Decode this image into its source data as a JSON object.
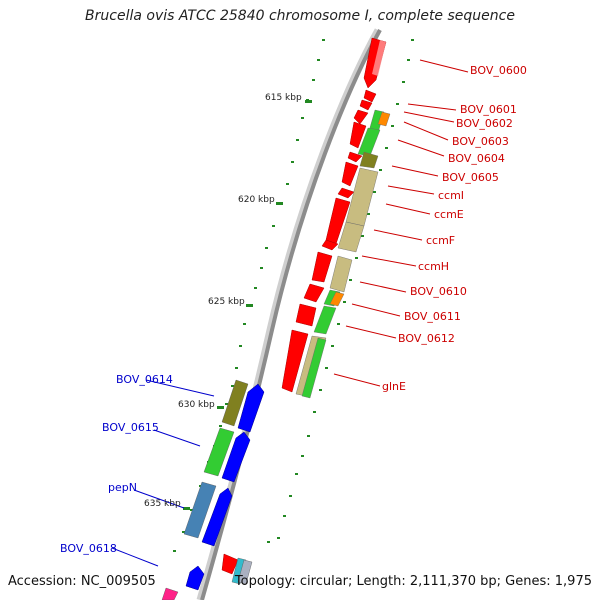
{
  "title": "Brucella ovis ATCC 25840 chromosome I, complete sequence",
  "accession_text": "Accession: NC_009505",
  "summary_text": "Topology: circular; Length: 2,111,370 bp; Genes: 1,975",
  "colors": {
    "backbone": "#8c8c8c",
    "forward_gene": "#ff0000",
    "reverse_gene": "#0000ff",
    "cds_green": "#33cc33",
    "cds_olive": "#808020",
    "cds_khaki": "#c8bc80",
    "cds_orange": "#ff8800",
    "cds_steel": "#4682b4",
    "tick_green": "#228822",
    "label_red": "#cc0000",
    "label_blue": "#0000cc"
  },
  "scale_labels": [
    "615 kbp",
    "620 kbp",
    "625 kbp",
    "630 kbp",
    "635 kbp"
  ],
  "forward_genes": [
    "BOV_0600",
    "BOV_0601",
    "BOV_0602",
    "BOV_0603",
    "BOV_0604",
    "BOV_0605",
    "ccmI",
    "ccmE",
    "ccmF",
    "ccmH",
    "BOV_0610",
    "BOV_0611",
    "BOV_0612",
    "glnE"
  ],
  "reverse_genes": [
    "BOV_0614",
    "BOV_0615",
    "pepN",
    "BOV_0618"
  ]
}
